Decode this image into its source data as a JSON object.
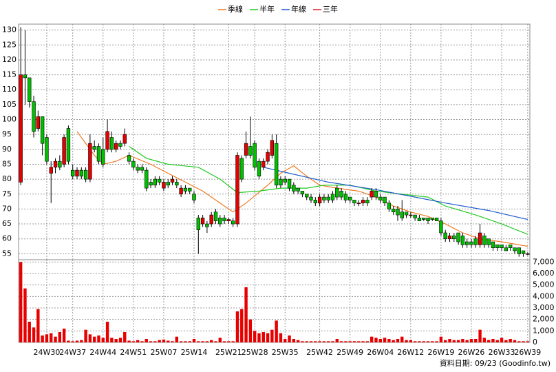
{
  "chart_data": {
    "type": "candlestick",
    "up_color": "#e60000",
    "down_color": "#00c000",
    "grid": true,
    "ylim": [
      53,
      132
    ],
    "yticks": [
      55,
      60,
      65,
      70,
      75,
      80,
      85,
      90,
      95,
      100,
      105,
      110,
      115,
      120,
      125,
      130
    ],
    "categories": [
      null,
      null,
      null,
      null,
      null,
      null,
      "24W30",
      null,
      null,
      null,
      null,
      null,
      "24W37",
      null,
      null,
      null,
      null,
      null,
      null,
      "24W44",
      null,
      null,
      null,
      null,
      null,
      null,
      "24W51",
      null,
      null,
      null,
      null,
      null,
      null,
      "25W07",
      null,
      null,
      null,
      null,
      null,
      null,
      "25W14",
      null,
      null,
      null,
      null,
      null,
      null,
      null,
      "25W21",
      null,
      null,
      null,
      null,
      null,
      "25W28",
      null,
      null,
      null,
      null,
      null,
      null,
      "25W35",
      null,
      null,
      null,
      null,
      null,
      null,
      null,
      "25W42",
      null,
      null,
      null,
      null,
      null,
      null,
      "25W49",
      null,
      null,
      null,
      null,
      null,
      null,
      "26W04",
      null,
      null,
      null,
      null,
      null,
      null,
      "26W12",
      null,
      null,
      null,
      null,
      null,
      null,
      "26W19",
      null,
      null,
      null,
      null,
      null,
      null,
      "26W26",
      null,
      null,
      null,
      null,
      null,
      null,
      "26W33",
      null,
      null,
      null,
      null,
      null,
      "26W39"
    ],
    "ohlc": [
      [
        79,
        131,
        78,
        115
      ],
      [
        115,
        130,
        105,
        114
      ],
      [
        114,
        114,
        104,
        106
      ],
      [
        106,
        108,
        94,
        96
      ],
      [
        97,
        103,
        96,
        101
      ],
      [
        101,
        101,
        88,
        92
      ],
      [
        94,
        95,
        85,
        86
      ],
      [
        82,
        86,
        72,
        84
      ],
      [
        84,
        87,
        82,
        86
      ],
      [
        86,
        88,
        83,
        84
      ],
      [
        85,
        95,
        84,
        94
      ],
      [
        97,
        98,
        85,
        86
      ],
      [
        83,
        85,
        80,
        81
      ],
      [
        81,
        84,
        80,
        83
      ],
      [
        83,
        84,
        80,
        81
      ],
      [
        83,
        84,
        79,
        80
      ],
      [
        80,
        95,
        79,
        92
      ],
      [
        91,
        93,
        89,
        90
      ],
      [
        91,
        92,
        85,
        86
      ],
      [
        90,
        94,
        84,
        85
      ],
      [
        90,
        100,
        89,
        96
      ],
      [
        94,
        96,
        89,
        90
      ],
      [
        90,
        93,
        89,
        92
      ],
      [
        92,
        93,
        90,
        91
      ],
      [
        92,
        97,
        91,
        95
      ],
      [
        88,
        89,
        85,
        86
      ],
      [
        86,
        87,
        83,
        84
      ],
      [
        84,
        85,
        82,
        83
      ],
      [
        84,
        85,
        82,
        83
      ],
      [
        83,
        84,
        76,
        77
      ],
      [
        79,
        80,
        77,
        78
      ],
      [
        80,
        81,
        77,
        78
      ],
      [
        80,
        81,
        78,
        79
      ],
      [
        77,
        80,
        76,
        79
      ],
      [
        79,
        80,
        77,
        78
      ],
      [
        79,
        81,
        78,
        80
      ],
      [
        79,
        80,
        77,
        78
      ],
      [
        75,
        78,
        74,
        77
      ],
      [
        77,
        78,
        75,
        76
      ],
      [
        77,
        77,
        75,
        76
      ],
      [
        75,
        76,
        72,
        73
      ],
      [
        67,
        68,
        55,
        63
      ],
      [
        65,
        68,
        64,
        67
      ],
      [
        65,
        66,
        62,
        64
      ],
      [
        65,
        69,
        64,
        68
      ],
      [
        69,
        70,
        65,
        66
      ],
      [
        67,
        68,
        64,
        65
      ],
      [
        67,
        68,
        65,
        66
      ],
      [
        66,
        67,
        65,
        66.5
      ],
      [
        66,
        67,
        64,
        65
      ],
      [
        65,
        89,
        64,
        88
      ],
      [
        87,
        88,
        79,
        80
      ],
      [
        88,
        96,
        87,
        92
      ],
      [
        91,
        101,
        87,
        88
      ],
      [
        92,
        93,
        83,
        84
      ],
      [
        86,
        87,
        80,
        81
      ],
      [
        84,
        87,
        83,
        86
      ],
      [
        86,
        90,
        85,
        89
      ],
      [
        88,
        95,
        87,
        93
      ],
      [
        92,
        95,
        77,
        78
      ],
      [
        80,
        81,
        77,
        78
      ],
      [
        80,
        81,
        78,
        79
      ],
      [
        80,
        80,
        76,
        77
      ],
      [
        78,
        79,
        75,
        76
      ],
      [
        77,
        77,
        75,
        76
      ],
      [
        76,
        76,
        74,
        75
      ],
      [
        75,
        75,
        73,
        74
      ],
      [
        74,
        75,
        72,
        73
      ],
      [
        73,
        74,
        71,
        72
      ],
      [
        72,
        75,
        71,
        74
      ],
      [
        74,
        75,
        72,
        73
      ],
      [
        74,
        75,
        72,
        73
      ],
      [
        75,
        76,
        72,
        73
      ],
      [
        77,
        78,
        73,
        74
      ],
      [
        76,
        77,
        73,
        74
      ],
      [
        75,
        76,
        72,
        73
      ],
      [
        74,
        74,
        72,
        73
      ],
      [
        73,
        73,
        71,
        72
      ],
      [
        72,
        73,
        71,
        72
      ],
      [
        72,
        74,
        71,
        73
      ],
      [
        73,
        74,
        71,
        72
      ],
      [
        74,
        77,
        73,
        76
      ],
      [
        76,
        77,
        73,
        74
      ],
      [
        74,
        75,
        72,
        73
      ],
      [
        74,
        74,
        71,
        72
      ],
      [
        72,
        73,
        69,
        70
      ],
      [
        70,
        71,
        68,
        69
      ],
      [
        70,
        71,
        66,
        68
      ],
      [
        69,
        73,
        66,
        67
      ],
      [
        69,
        69,
        67,
        68
      ],
      [
        68,
        69,
        67,
        68
      ],
      [
        68,
        68,
        66,
        67
      ],
      [
        67,
        68,
        66,
        66
      ],
      [
        67,
        67,
        66,
        66.5
      ],
      [
        67,
        67,
        65,
        66
      ],
      [
        67,
        67,
        66,
        66.5
      ],
      [
        67,
        67,
        66,
        66
      ],
      [
        66,
        67,
        61,
        62
      ],
      [
        62,
        63,
        59,
        60
      ],
      [
        60,
        62,
        59,
        61
      ],
      [
        61,
        62,
        59,
        60
      ],
      [
        62,
        62,
        58,
        59
      ],
      [
        61,
        62,
        57,
        58
      ],
      [
        59,
        60,
        57,
        58
      ],
      [
        59,
        60,
        57,
        58
      ],
      [
        60,
        61,
        57,
        58
      ],
      [
        58,
        65,
        57,
        62
      ],
      [
        61,
        62,
        57,
        58
      ],
      [
        60,
        60,
        57,
        58
      ],
      [
        59,
        59,
        56,
        57
      ],
      [
        58,
        58,
        56,
        57
      ],
      [
        58,
        58,
        56,
        57
      ],
      [
        57,
        58,
        56,
        56
      ],
      [
        58,
        58,
        56,
        57
      ],
      [
        57,
        57,
        55,
        56
      ],
      [
        57,
        57,
        54,
        55
      ],
      [
        56,
        56,
        54,
        55
      ],
      [
        55,
        55.5,
        54.5,
        55
      ]
    ],
    "series": [
      {
        "name": "季線",
        "color": "#f07820",
        "x": [
          13,
          17,
          19,
          22,
          25,
          30,
          34,
          38,
          42,
          47,
          49,
          52,
          57,
          60,
          63,
          66,
          69,
          73,
          78,
          82,
          86,
          90,
          94,
          98,
          102,
          106,
          111,
          117
        ],
        "values": [
          96,
          88,
          85,
          86,
          88,
          85,
          82,
          79,
          76,
          71,
          69,
          72,
          78,
          82,
          84.5,
          81,
          78,
          77,
          76,
          74,
          71,
          69,
          67.5,
          65,
          62,
          60,
          59,
          57.5
        ]
      },
      {
        "name": "半年",
        "color": "#20c820",
        "x": [
          25,
          29,
          34,
          41,
          46,
          50,
          55,
          60,
          66,
          70,
          76,
          82,
          88,
          94,
          98,
          105,
          111,
          117
        ],
        "values": [
          91,
          87,
          85,
          84,
          80,
          75.5,
          76,
          77,
          77,
          78,
          78,
          76,
          75,
          74,
          71,
          68,
          65,
          61.5
        ]
      },
      {
        "name": "年線",
        "color": "#1e5ccc",
        "x": [
          56,
          62,
          71,
          82,
          91,
          98,
          108,
          117
        ],
        "values": [
          84,
          82,
          79,
          76.5,
          74,
          72,
          69.5,
          66.5
        ]
      },
      {
        "name": "三年",
        "color": "#e02020",
        "x": [],
        "values": []
      }
    ],
    "volume": {
      "color": "#e60000",
      "ylim": [
        0,
        7200
      ],
      "yticks": [
        0,
        {
          "value": 1000,
          "label": "1,000"
        },
        {
          "value": 2000,
          "label": "2,000"
        },
        {
          "value": 3000,
          "label": "3,000"
        },
        {
          "value": 4000,
          "label": "4,000"
        },
        {
          "value": 5000,
          "label": "5,000"
        },
        {
          "value": 6000,
          "label": "6,000"
        },
        {
          "value": 7000,
          "label": "7,000"
        }
      ],
      "values": [
        7000,
        4700,
        1800,
        1300,
        2900,
        600,
        700,
        800,
        500,
        900,
        1200,
        150,
        100,
        150,
        200,
        1100,
        700,
        500,
        600,
        400,
        1800,
        400,
        300,
        400,
        900,
        150,
        100,
        200,
        100,
        300,
        100,
        100,
        200,
        250,
        150,
        100,
        500,
        100,
        100,
        100,
        300,
        100,
        100,
        100,
        200,
        100,
        400,
        100,
        100,
        100,
        2700,
        2900,
        4800,
        2000,
        1000,
        800,
        900,
        800,
        1100,
        1900,
        800,
        300,
        600,
        300,
        200,
        100,
        100,
        100,
        100,
        100,
        100,
        100,
        100,
        300,
        100,
        100,
        100,
        100,
        100,
        100,
        100,
        500,
        400,
        300,
        400,
        300,
        200,
        300,
        500,
        200,
        200,
        100,
        100,
        100,
        100,
        100,
        100,
        500,
        200,
        300,
        200,
        200,
        300,
        200,
        300,
        300,
        1100,
        400,
        200,
        300,
        200,
        400,
        200,
        300,
        200,
        100,
        100,
        100
      ]
    },
    "source_note": "資料日期: 09/23 (Goodinfo.tw)"
  }
}
